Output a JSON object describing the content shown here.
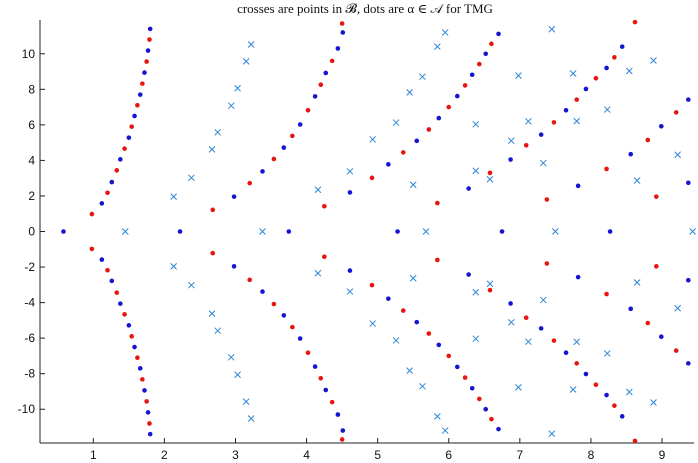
{
  "chart_data": {
    "type": "scatter",
    "title": "crosses are points in 𝓑, dots are α ∈ 𝒜 for TMG",
    "xlabel": "",
    "ylabel": "",
    "xlim": [
      0.25,
      9.45
    ],
    "ylim": [
      -11.9,
      11.9
    ],
    "x_ticks": [
      1,
      2,
      3,
      4,
      5,
      6,
      7,
      8,
      9
    ],
    "x_tick_labels": [
      "1",
      "2",
      "3",
      "4",
      "5",
      "6",
      "7",
      "8",
      "9"
    ],
    "y_ticks": [
      -10,
      -8,
      -6,
      -4,
      -2,
      0,
      2,
      4,
      6,
      8,
      10
    ],
    "y_tick_labels": [
      "-10",
      "-8",
      "-6",
      "-4",
      "-2",
      "0",
      "2",
      "4",
      "6",
      "8",
      "10"
    ],
    "grid": false,
    "box": "left-bottom",
    "colors": {
      "crosses": "#2e86d6",
      "dots_blue": "#1414d2",
      "dots_red": "#e8140f"
    },
    "series": [
      {
        "marker": "cross",
        "color": "#2e86d6",
        "points": [
          [
            1.45,
            0
          ],
          [
            2.13,
            1.96
          ],
          [
            2.13,
            -1.96
          ],
          [
            2.38,
            3.02
          ],
          [
            2.38,
            -3.02
          ],
          [
            2.67,
            4.62
          ],
          [
            2.67,
            -4.62
          ],
          [
            2.75,
            5.58
          ],
          [
            2.75,
            -5.58
          ],
          [
            2.94,
            7.08
          ],
          [
            2.94,
            -7.08
          ],
          [
            3.03,
            8.06
          ],
          [
            3.03,
            -8.06
          ],
          [
            3.15,
            9.57
          ],
          [
            3.15,
            -9.57
          ],
          [
            3.22,
            10.52
          ],
          [
            3.22,
            -10.52
          ],
          [
            3.38,
            0
          ],
          [
            4.16,
            2.35
          ],
          [
            4.16,
            -2.35
          ],
          [
            4.61,
            3.38
          ],
          [
            4.61,
            -3.38
          ],
          [
            4.93,
            5.18
          ],
          [
            4.93,
            -5.18
          ],
          [
            5.26,
            6.13
          ],
          [
            5.26,
            -6.13
          ],
          [
            5.45,
            7.83
          ],
          [
            5.45,
            -7.83
          ],
          [
            5.63,
            8.71
          ],
          [
            5.63,
            -8.71
          ],
          [
            5.84,
            10.4
          ],
          [
            5.84,
            -10.4
          ],
          [
            5.95,
            11.2
          ],
          [
            5.95,
            -11.2
          ],
          [
            5.5,
            2.63
          ],
          [
            5.5,
            -2.63
          ],
          [
            5.68,
            0
          ],
          [
            6.38,
            3.42
          ],
          [
            6.38,
            -3.42
          ],
          [
            6.58,
            2.94
          ],
          [
            6.58,
            -2.94
          ],
          [
            6.38,
            6.03
          ],
          [
            6.38,
            -6.03
          ],
          [
            6.88,
            5.11
          ],
          [
            6.88,
            -5.11
          ],
          [
            7.12,
            6.2
          ],
          [
            7.12,
            -6.2
          ],
          [
            7.33,
            3.85
          ],
          [
            7.33,
            -3.85
          ],
          [
            6.98,
            8.77
          ],
          [
            6.98,
            -8.77
          ],
          [
            7.45,
            11.38
          ],
          [
            7.45,
            -11.38
          ],
          [
            7.5,
            0
          ],
          [
            7.75,
            8.89
          ],
          [
            7.75,
            -8.89
          ],
          [
            7.8,
            6.21
          ],
          [
            7.8,
            -6.21
          ],
          [
            8.23,
            6.86
          ],
          [
            8.23,
            -6.86
          ],
          [
            8.54,
            9.03
          ],
          [
            8.54,
            -9.03
          ],
          [
            8.65,
            2.87
          ],
          [
            8.65,
            -2.87
          ],
          [
            8.88,
            9.62
          ],
          [
            8.88,
            -9.62
          ],
          [
            9.22,
            4.32
          ],
          [
            9.22,
            -4.32
          ],
          [
            9.43,
            0
          ]
        ]
      },
      {
        "marker": "dot",
        "color": "#1414d2",
        "points": [
          [
            0.58,
            0
          ],
          [
            1.12,
            1.58
          ],
          [
            1.12,
            -1.58
          ],
          [
            1.26,
            2.78
          ],
          [
            1.26,
            -2.78
          ],
          [
            1.38,
            4.06
          ],
          [
            1.38,
            -4.06
          ],
          [
            1.5,
            5.28
          ],
          [
            1.5,
            -5.28
          ],
          [
            1.58,
            6.5
          ],
          [
            1.58,
            -6.5
          ],
          [
            1.66,
            7.7
          ],
          [
            1.66,
            -7.7
          ],
          [
            1.72,
            8.94
          ],
          [
            1.72,
            -8.94
          ],
          [
            1.77,
            10.18
          ],
          [
            1.77,
            -10.18
          ],
          [
            1.8,
            11.4
          ],
          [
            1.8,
            -11.4
          ],
          [
            2.22,
            0
          ],
          [
            2.98,
            1.96
          ],
          [
            2.98,
            -1.96
          ],
          [
            3.38,
            3.38
          ],
          [
            3.38,
            -3.38
          ],
          [
            3.68,
            4.72
          ],
          [
            3.68,
            -4.72
          ],
          [
            3.91,
            6.02
          ],
          [
            3.91,
            -6.02
          ],
          [
            4.12,
            7.6
          ],
          [
            4.12,
            -7.6
          ],
          [
            4.27,
            8.92
          ],
          [
            4.27,
            -8.92
          ],
          [
            4.44,
            10.3
          ],
          [
            4.44,
            -10.3
          ],
          [
            4.51,
            11.2
          ],
          [
            4.51,
            -11.2
          ],
          [
            3.75,
            0
          ],
          [
            4.61,
            2.2
          ],
          [
            4.61,
            -2.2
          ],
          [
            5.15,
            3.78
          ],
          [
            5.15,
            -3.78
          ],
          [
            5.55,
            5.1
          ],
          [
            5.55,
            -5.1
          ],
          [
            5.86,
            6.38
          ],
          [
            5.86,
            -6.38
          ],
          [
            6.12,
            7.62
          ],
          [
            6.12,
            -7.62
          ],
          [
            6.33,
            8.82
          ],
          [
            6.33,
            -8.82
          ],
          [
            6.52,
            10.0
          ],
          [
            6.52,
            -10.0
          ],
          [
            6.7,
            11.12
          ],
          [
            6.7,
            -11.12
          ],
          [
            5.28,
            0
          ],
          [
            6.28,
            2.42
          ],
          [
            6.28,
            -2.42
          ],
          [
            6.87,
            4.05
          ],
          [
            6.87,
            -4.05
          ],
          [
            7.3,
            5.45
          ],
          [
            7.3,
            -5.45
          ],
          [
            7.65,
            6.82
          ],
          [
            7.65,
            -6.82
          ],
          [
            7.93,
            8.02
          ],
          [
            7.93,
            -8.02
          ],
          [
            8.22,
            9.2
          ],
          [
            8.22,
            -9.2
          ],
          [
            8.44,
            10.4
          ],
          [
            8.44,
            -10.4
          ],
          [
            6.75,
            0
          ],
          [
            7.82,
            2.57
          ],
          [
            7.82,
            -2.57
          ],
          [
            8.56,
            4.35
          ],
          [
            8.56,
            -4.35
          ],
          [
            8.99,
            5.92
          ],
          [
            8.99,
            -5.92
          ],
          [
            9.37,
            7.42
          ],
          [
            9.37,
            -7.42
          ],
          [
            8.27,
            0
          ],
          [
            9.37,
            2.74
          ],
          [
            9.37,
            -2.74
          ]
        ]
      },
      {
        "marker": "dot",
        "color": "#e8140f",
        "points": [
          [
            0.98,
            0.98
          ],
          [
            0.98,
            -0.98
          ],
          [
            1.2,
            2.18
          ],
          [
            1.2,
            -2.18
          ],
          [
            1.33,
            3.44
          ],
          [
            1.33,
            -3.44
          ],
          [
            1.44,
            4.66
          ],
          [
            1.44,
            -4.66
          ],
          [
            1.54,
            5.9
          ],
          [
            1.54,
            -5.9
          ],
          [
            1.62,
            7.1
          ],
          [
            1.62,
            -7.1
          ],
          [
            1.69,
            8.32
          ],
          [
            1.69,
            -8.32
          ],
          [
            1.75,
            9.56
          ],
          [
            1.75,
            -9.56
          ],
          [
            1.79,
            10.8
          ],
          [
            1.79,
            -10.8
          ],
          [
            2.68,
            1.22
          ],
          [
            2.68,
            -1.22
          ],
          [
            3.2,
            2.72
          ],
          [
            3.2,
            -2.72
          ],
          [
            3.54,
            4.08
          ],
          [
            3.54,
            -4.08
          ],
          [
            3.8,
            5.38
          ],
          [
            3.8,
            -5.38
          ],
          [
            4.02,
            6.82
          ],
          [
            4.02,
            -6.82
          ],
          [
            4.2,
            8.26
          ],
          [
            4.2,
            -8.26
          ],
          [
            4.36,
            9.6
          ],
          [
            4.36,
            -9.6
          ],
          [
            4.5,
            11.7
          ],
          [
            4.5,
            -11.7
          ],
          [
            4.25,
            1.42
          ],
          [
            4.25,
            -1.42
          ],
          [
            4.92,
            3.02
          ],
          [
            4.92,
            -3.02
          ],
          [
            5.36,
            4.45
          ],
          [
            5.36,
            -4.45
          ],
          [
            5.72,
            5.74
          ],
          [
            5.72,
            -5.74
          ],
          [
            6.0,
            7.0
          ],
          [
            6.0,
            -7.0
          ],
          [
            6.23,
            8.22
          ],
          [
            6.23,
            -8.22
          ],
          [
            6.43,
            9.42
          ],
          [
            6.43,
            -9.42
          ],
          [
            6.6,
            10.56
          ],
          [
            6.6,
            -10.56
          ],
          [
            5.84,
            1.6
          ],
          [
            5.84,
            -1.6
          ],
          [
            6.58,
            3.3
          ],
          [
            6.58,
            -3.3
          ],
          [
            7.09,
            4.85
          ],
          [
            7.09,
            -4.85
          ],
          [
            7.48,
            6.14
          ],
          [
            7.48,
            -6.14
          ],
          [
            7.8,
            7.42
          ],
          [
            7.8,
            -7.42
          ],
          [
            8.07,
            8.62
          ],
          [
            8.07,
            -8.62
          ],
          [
            8.33,
            9.8
          ],
          [
            8.33,
            -9.8
          ],
          [
            8.62,
            11.78
          ],
          [
            8.62,
            -11.78
          ],
          [
            7.38,
            1.8
          ],
          [
            7.38,
            -1.8
          ],
          [
            8.22,
            3.52
          ],
          [
            8.22,
            -3.52
          ],
          [
            8.8,
            5.15
          ],
          [
            8.8,
            -5.15
          ],
          [
            9.2,
            6.7
          ],
          [
            9.2,
            -6.7
          ],
          [
            8.92,
            1.96
          ],
          [
            8.92,
            -1.96
          ]
        ]
      }
    ]
  }
}
